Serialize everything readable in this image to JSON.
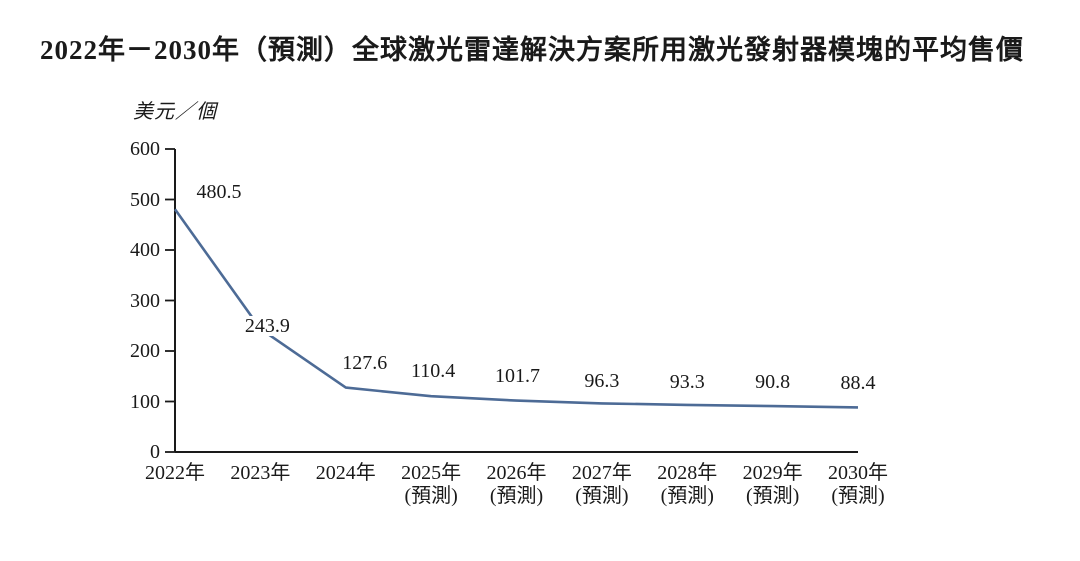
{
  "title": "2022年－2030年（預測）全球激光雷達解決方案所用激光發射器模塊的平均售價",
  "chart_data": {
    "type": "line",
    "title": "2022年－2030年（預測）全球激光雷達解決方案所用激光發射器模塊的平均售價",
    "ylabel": "美元／個",
    "xlabel": "",
    "categories": [
      "2022年",
      "2023年",
      "2024年",
      "2025年",
      "2026年",
      "2027年",
      "2028年",
      "2029年",
      "2030年"
    ],
    "category_sublabels": [
      "",
      "",
      "",
      "(預測)",
      "(預測)",
      "(預測)",
      "(預測)",
      "(預測)",
      "(預測)"
    ],
    "values": [
      480.5,
      243.9,
      127.6,
      110.4,
      101.7,
      96.3,
      93.3,
      90.8,
      88.4
    ],
    "data_labels": [
      "480.5",
      "243.9",
      "127.6",
      "110.4",
      "101.7",
      "96.3",
      "93.3",
      "90.8",
      "88.4"
    ],
    "ylim": [
      0,
      600
    ],
    "ytick_interval": 100,
    "ytick_labels": [
      "0",
      "100",
      "200",
      "300",
      "400",
      "500",
      "600"
    ],
    "grid": false,
    "legend": "none",
    "line_color": "#4d6b96",
    "axis_color": "#1a1a1a",
    "text_color": "#1a1a1a"
  }
}
